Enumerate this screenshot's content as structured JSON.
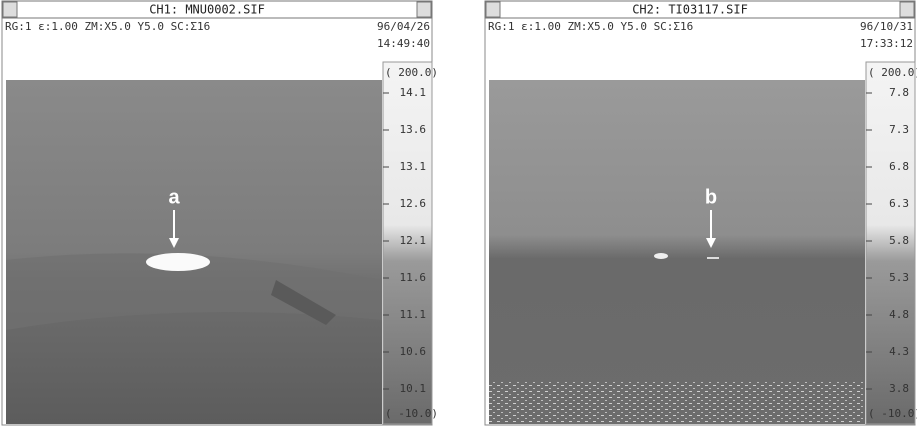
{
  "panels": [
    {
      "title": "CH1: MNU0002.SIF",
      "info": "RG:1  ε:1.00  ZM:X5.0 Y5.0 SC:Σ16",
      "date": "96/04/26",
      "time": "14:49:40",
      "scale_max": "( 200.0)",
      "scale_labels": [
        "14.1",
        "13.6",
        "13.1",
        "12.6",
        "12.1",
        "11.6",
        "11.1",
        "10.6",
        "10.1"
      ],
      "scale_min": "( -10.0)",
      "marker": "a"
    },
    {
      "title": "CH2: TI03117.SIF",
      "info": "RG:1  ε:1.00  ZM:X5.0 Y5.0 SC:Σ16",
      "date": "96/10/31",
      "time": "17:33:12",
      "scale_max": "( 200.0)",
      "scale_labels": [
        "7.8",
        "7.3",
        "6.8",
        "6.3",
        "5.8",
        "5.3",
        "4.8",
        "4.3",
        "3.8"
      ],
      "scale_min": "( -10.0)",
      "marker": "b"
    }
  ]
}
